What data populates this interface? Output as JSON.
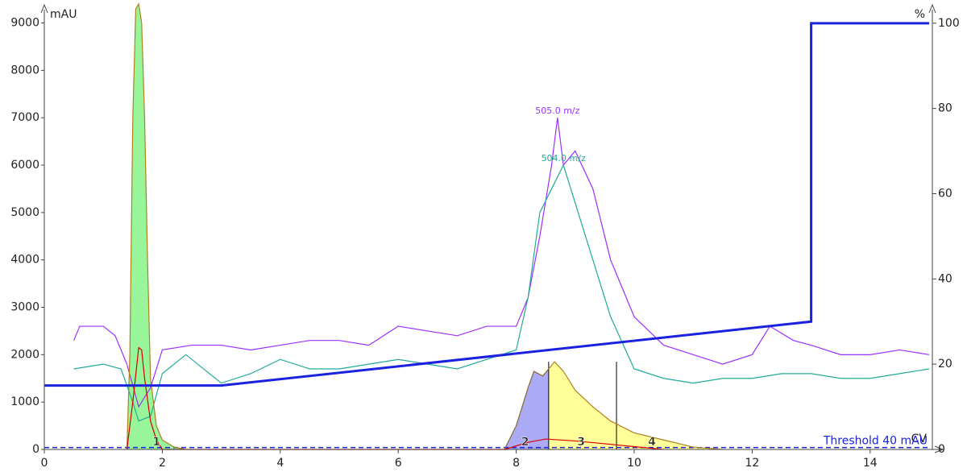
{
  "chart_data": {
    "type": "line",
    "y_label": "mAU",
    "y2_label": "%",
    "x_label": "CV",
    "xlim": [
      0,
      15
    ],
    "xticks": [
      0,
      2,
      4,
      6,
      8,
      10,
      12,
      14
    ],
    "ylim": [
      0,
      9400
    ],
    "yticks": [
      0,
      1000,
      2000,
      3000,
      4000,
      5000,
      6000,
      7000,
      8000,
      9000
    ],
    "y2lim": [
      0,
      104.5
    ],
    "y2ticks": [
      0,
      20,
      40,
      60,
      80,
      100
    ],
    "series": [
      {
        "name": "505.0 m/z",
        "color": "#9b30ff",
        "x": [
          0.5,
          0.6,
          1.0,
          1.2,
          1.4,
          1.6,
          1.8,
          2.0,
          2.5,
          3,
          3.5,
          4,
          4.5,
          5,
          5.5,
          6,
          6.5,
          7,
          7.5,
          8,
          8.2,
          8.4,
          8.6,
          8.7,
          8.8,
          9.0,
          9.3,
          9.6,
          10,
          10.5,
          11,
          11.5,
          12,
          12.3,
          12.7,
          13,
          13.5,
          14,
          14.5,
          15
        ],
        "values": [
          2300,
          2600,
          2600,
          2400,
          1800,
          900,
          1300,
          2100,
          2200,
          2200,
          2100,
          2200,
          2300,
          2300,
          2200,
          2600,
          2500,
          2400,
          2600,
          2600,
          3200,
          4500,
          6000,
          7000,
          6000,
          6300,
          5500,
          4000,
          2800,
          2200,
          2000,
          1800,
          2000,
          2600,
          2300,
          2200,
          2000,
          2000,
          2100,
          2000
        ]
      },
      {
        "name": "504.0 m/z",
        "color": "#22aa99",
        "x": [
          0.5,
          1.0,
          1.3,
          1.5,
          1.6,
          1.8,
          2.0,
          2.4,
          3,
          3.5,
          4,
          4.5,
          5,
          5.5,
          6,
          6.5,
          7,
          7.5,
          8,
          8.2,
          8.4,
          8.6,
          8.8,
          9.0,
          9.3,
          9.6,
          10,
          10.5,
          11,
          11.5,
          12,
          12.5,
          13,
          13.5,
          14,
          14.5,
          15
        ],
        "values": [
          1700,
          1800,
          1700,
          1000,
          600,
          700,
          1600,
          2000,
          1400,
          1600,
          1900,
          1700,
          1700,
          1800,
          1900,
          1800,
          1700,
          1900,
          2100,
          3200,
          5000,
          5500,
          6000,
          5200,
          4000,
          2800,
          1700,
          1500,
          1400,
          1500,
          1500,
          1600,
          1600,
          1500,
          1500,
          1600,
          1700
        ]
      },
      {
        "color": "#b08020",
        "fill": "#99f599",
        "x": [
          1.4,
          1.45,
          1.5,
          1.55,
          1.6,
          1.65,
          1.7,
          1.75,
          1.8,
          1.9,
          2.0,
          2.2,
          2.4
        ],
        "values": [
          0,
          2000,
          7000,
          9300,
          9400,
          9000,
          7000,
          4000,
          1500,
          500,
          200,
          50,
          0
        ]
      },
      {
        "color": "#8a6a30",
        "fill": "#aaaaf5",
        "x": [
          7.8,
          8.0,
          8.2,
          8.3,
          8.45,
          8.55
        ],
        "values": [
          0,
          500,
          1300,
          1650,
          1550,
          1700
        ]
      },
      {
        "color": "#b08020",
        "fill": "#ffff99",
        "x": [
          8.55,
          8.65,
          8.8,
          9.0,
          9.3,
          9.6,
          10,
          10.5,
          11,
          11.5
        ],
        "values": [
          1700,
          1850,
          1650,
          1250,
          900,
          600,
          350,
          200,
          50,
          0
        ]
      },
      {
        "color": "#dd0000",
        "x": [
          1.4,
          1.5,
          1.6,
          1.65,
          1.7,
          1.8,
          1.9,
          2.0,
          7.8,
          8.2,
          8.5,
          9.0,
          9.5,
          10,
          10.5
        ],
        "values": [
          0,
          1000,
          2150,
          2100,
          1500,
          600,
          200,
          0,
          0,
          150,
          220,
          180,
          120,
          60,
          0
        ]
      },
      {
        "color": "#1a22e0",
        "axis": "y2",
        "x": [
          0,
          3,
          13,
          13,
          15
        ],
        "values": [
          15,
          15,
          30,
          100,
          100
        ]
      }
    ],
    "threshold": {
      "value": 40,
      "label": "Threshold 40 mAU",
      "color": "#1a22e0"
    },
    "fraction_marks": [
      8.55,
      9.7
    ],
    "fractions": [
      {
        "label": "1",
        "x": 1.9
      },
      {
        "label": "2",
        "x": 8.15
      },
      {
        "label": "3",
        "x": 9.1
      },
      {
        "label": "4",
        "x": 10.3
      }
    ]
  }
}
